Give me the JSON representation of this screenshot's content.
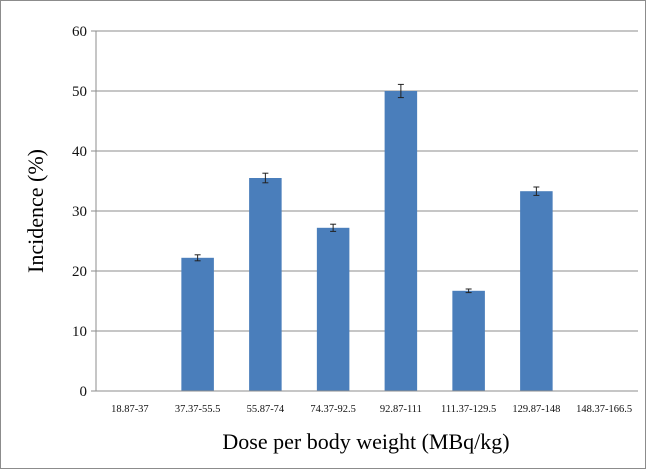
{
  "chart_data": {
    "type": "bar",
    "title": "",
    "xlabel": "Dose per body weight (MBq/kg)",
    "ylabel": "Incidence (%)",
    "ylim": [
      0,
      60
    ],
    "y_ticks": [
      "0",
      "10",
      "20",
      "30",
      "40",
      "50",
      "60"
    ],
    "grid": true,
    "legend": "none",
    "categories": [
      "18.87-37",
      "37.37-55.5",
      "55.87-74",
      "74.37-92.5",
      "92.87-111",
      "111.37-129.5",
      "129.87-148",
      "148.37-166.5"
    ],
    "series": [
      {
        "values": [
          0,
          22.2,
          35.5,
          27.2,
          50.0,
          16.7,
          33.3,
          0
        ],
        "errors": [
          0,
          0.5,
          0.8,
          0.6,
          1.1,
          0.3,
          0.7,
          0
        ],
        "color": "#4a7ebb"
      }
    ]
  }
}
